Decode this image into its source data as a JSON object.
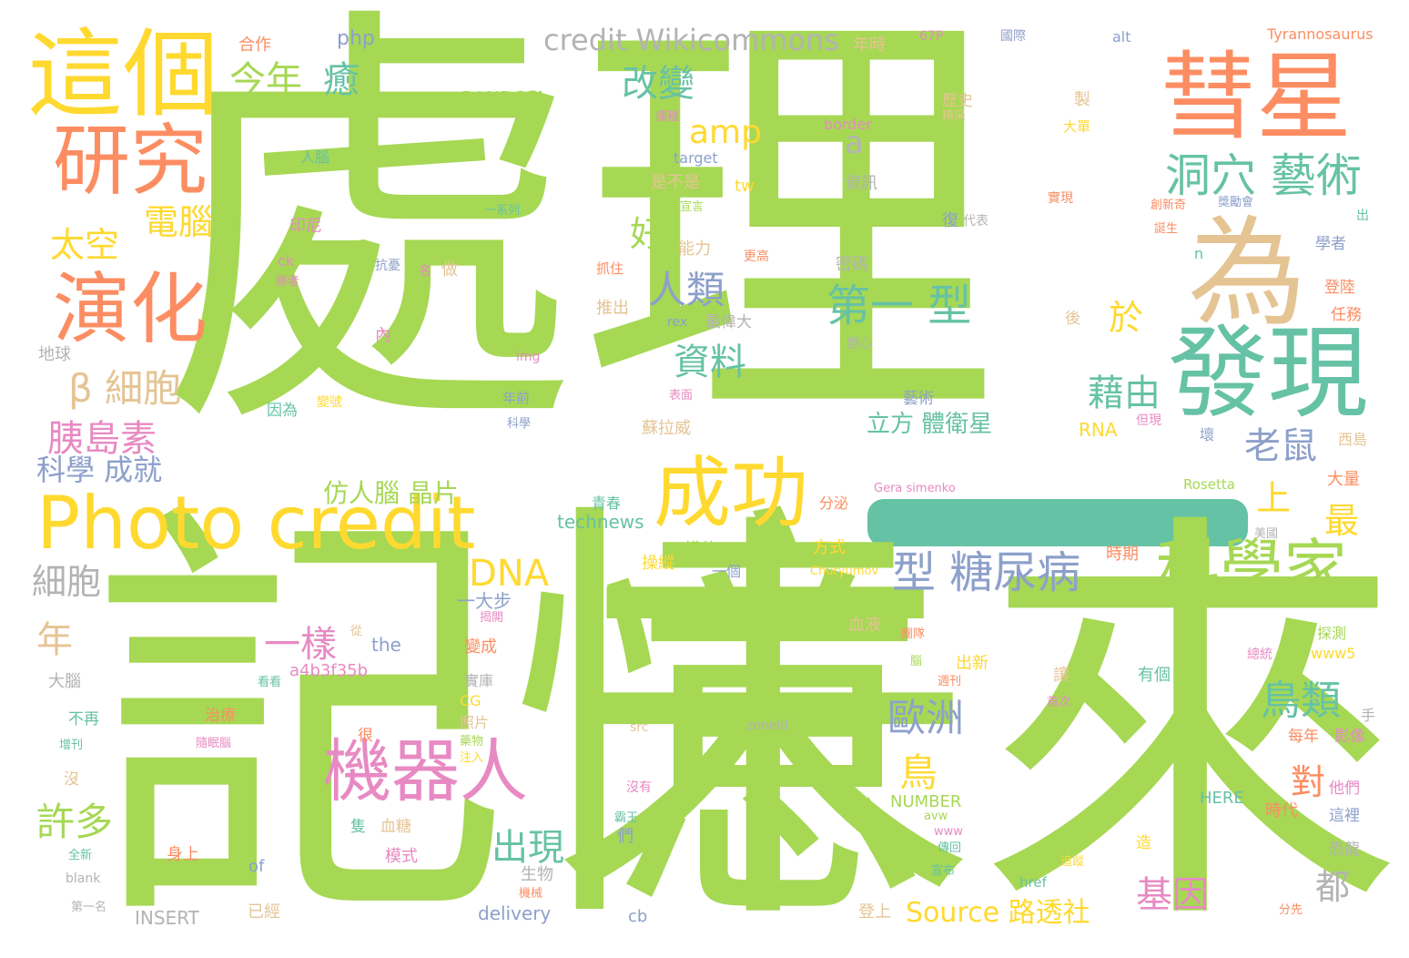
{
  "words": [
    {
      "text": "處理",
      "color": "#a6d854"
    },
    {
      "text": "記憶",
      "color": "#a6d854"
    },
    {
      "text": "未來",
      "color": "#a6d854"
    },
    {
      "text": "這個",
      "color": "#ffd92f"
    },
    {
      "text": "彗星",
      "color": "#fc8d62"
    },
    {
      "text": "研究",
      "color": "#fc8d62"
    },
    {
      "text": "演化",
      "color": "#fc8d62"
    },
    {
      "text": "為",
      "color": "#e5c494"
    },
    {
      "text": "發現",
      "color": "#66c2a5"
    },
    {
      "text": "Photo credit",
      "color": "#ffd92f"
    },
    {
      "text": "成功",
      "color": "#ffd92f"
    },
    {
      "text": "科學家",
      "color": "#a6d854"
    },
    {
      "text": "機器人",
      "color": "#e78ac3"
    },
    {
      "text": "型 糖尿病",
      "color": "#8da0cb"
    },
    {
      "text": "洞穴 藝術",
      "color": "#66c2a5"
    },
    {
      "text": "credit Wikicommons",
      "color": "#b3b3b3"
    },
    {
      "text": "今年",
      "color": "#a6d854"
    },
    {
      "text": "癒",
      "color": "#66c2a5"
    },
    {
      "text": "改變",
      "color": "#66c2a5"
    },
    {
      "text": "amp",
      "color": "#ffd92f"
    },
    {
      "text": "電腦",
      "color": "#ffd92f"
    },
    {
      "text": "太空",
      "color": "#ffd92f"
    },
    {
      "text": "a",
      "color": "#b3b3b3"
    },
    {
      "text": "好",
      "color": "#a6d854"
    },
    {
      "text": "人類",
      "color": "#8da0cb"
    },
    {
      "text": "第一 型",
      "color": "#66c2a5"
    },
    {
      "text": "於",
      "color": "#ffd92f"
    },
    {
      "text": "資料",
      "color": "#66c2a5"
    },
    {
      "text": "β 細胞",
      "color": "#e5c494"
    },
    {
      "text": "藉由",
      "color": "#66c2a5"
    },
    {
      "text": "胰島素",
      "color": "#e78ac3"
    },
    {
      "text": "老鼠",
      "color": "#8da0cb"
    },
    {
      "text": "科學 成就",
      "color": "#8da0cb"
    },
    {
      "text": "上",
      "color": "#ffd92f"
    },
    {
      "text": "最",
      "color": "#ffd92f"
    },
    {
      "text": "仿人腦 晶片",
      "color": "#a6d854"
    },
    {
      "text": "DNA",
      "color": "#ffd92f"
    },
    {
      "text": "細胞",
      "color": "#b3b3b3"
    },
    {
      "text": "年",
      "color": "#e5c494"
    },
    {
      "text": "一樣",
      "color": "#e78ac3"
    },
    {
      "text": "鳥類",
      "color": "#66c2a5"
    },
    {
      "text": "歐洲",
      "color": "#8da0cb"
    },
    {
      "text": "鳥",
      "color": "#ffd92f"
    },
    {
      "text": "對",
      "color": "#fc8d62"
    },
    {
      "text": "許多",
      "color": "#a6d854"
    },
    {
      "text": "出現",
      "color": "#66c2a5"
    },
    {
      "text": "基因",
      "color": "#e78ac3"
    },
    {
      "text": "都",
      "color": "#b3b3b3"
    },
    {
      "text": "Source 路透社",
      "color": "#ffd92f"
    },
    {
      "text": "立方 體衛星",
      "color": "#66c2a5"
    },
    {
      "text": "php",
      "color": "#8da0cb"
    },
    {
      "text": "合作",
      "color": "#fc8d62"
    },
    {
      "text": "年時",
      "color": "#e5c494"
    },
    {
      "text": "67P",
      "color": "#e78ac3"
    },
    {
      "text": "國際",
      "color": "#8da0cb"
    },
    {
      "text": "alt",
      "color": "#8da0cb"
    },
    {
      "text": "Tyrannosaurus",
      "color": "#fc8d62"
    },
    {
      "text": "RANDOM",
      "color": "#a6d854"
    },
    {
      "text": "歷史",
      "color": "#e5c494"
    },
    {
      "text": "精采",
      "color": "#e5c494"
    },
    {
      "text": "製",
      "color": "#e5c494"
    },
    {
      "text": "大單",
      "color": "#ffd92f"
    },
    {
      "text": "border",
      "color": "#e78ac3"
    },
    {
      "text": "播種",
      "color": "#e78ac3"
    },
    {
      "text": "人腦",
      "color": "#66c2a5"
    },
    {
      "text": "target",
      "color": "#8da0cb"
    },
    {
      "text": "是不是",
      "color": "#e5c494"
    },
    {
      "text": "tw",
      "color": "#ffd92f"
    },
    {
      "text": "資訊",
      "color": "#b3b3b3"
    },
    {
      "text": "一系列",
      "color": "#66c2a5"
    },
    {
      "text": "宣言",
      "color": "#a6d854"
    },
    {
      "text": "實現",
      "color": "#fc8d62"
    },
    {
      "text": "創新奇",
      "color": "#fc8d62"
    },
    {
      "text": "獎勵會",
      "color": "#8da0cb"
    },
    {
      "text": "復",
      "color": "#8da0cb"
    },
    {
      "text": "代表",
      "color": "#b3b3b3"
    },
    {
      "text": "印尼",
      "color": "#e78ac3"
    },
    {
      "text": "能力",
      "color": "#e5c494"
    },
    {
      "text": "更高",
      "color": "#fc8d62"
    },
    {
      "text": "密碼",
      "color": "#b3b3b3"
    },
    {
      "text": "誕生",
      "color": "#fc8d62"
    },
    {
      "text": "出",
      "color": "#66c2a5"
    },
    {
      "text": "學者",
      "color": "#8da0cb"
    },
    {
      "text": "n",
      "color": "#66c2a5"
    },
    {
      "text": "ck",
      "color": "#e78ac3"
    },
    {
      "text": "抗憂",
      "color": "#8da0cb"
    },
    {
      "text": "名",
      "color": "#e78ac3"
    },
    {
      "text": "做",
      "color": "#e5c494"
    },
    {
      "text": "抓住",
      "color": "#fc8d62"
    },
    {
      "text": "勝者",
      "color": "#e78ac3"
    },
    {
      "text": "登陸",
      "color": "#fc8d62"
    },
    {
      "text": "推出",
      "color": "#e5c494"
    },
    {
      "text": "rex",
      "color": "#8da0cb"
    },
    {
      "text": "最偉大",
      "color": "#b3b3b3"
    },
    {
      "text": "後",
      "color": "#e5c494"
    },
    {
      "text": "任務",
      "color": "#fc8d62"
    },
    {
      "text": "地球",
      "color": "#b3b3b3"
    },
    {
      "text": "內",
      "color": "#e78ac3"
    },
    {
      "text": "img",
      "color": "#e78ac3"
    },
    {
      "text": "野心",
      "color": "#b3b3b3"
    },
    {
      "text": "藝術",
      "color": "#8da0cb"
    },
    {
      "text": "因為",
      "color": "#66c2a5"
    },
    {
      "text": "年前",
      "color": "#8da0cb"
    },
    {
      "text": "科學",
      "color": "#8da0cb"
    },
    {
      "text": "變號",
      "color": "#ffd92f"
    },
    {
      "text": "表面",
      "color": "#e78ac3"
    },
    {
      "text": "蘇拉威",
      "color": "#e5c494"
    },
    {
      "text": "RNA",
      "color": "#ffd92f"
    },
    {
      "text": "但現",
      "color": "#e78ac3"
    },
    {
      "text": "壞",
      "color": "#8da0cb"
    },
    {
      "text": "西島",
      "color": "#e5c494"
    },
    {
      "text": "Gera simenko",
      "color": "#e78ac3"
    },
    {
      "text": "Rosetta",
      "color": "#a6d854"
    },
    {
      "text": "大量",
      "color": "#fc8d62"
    },
    {
      "text": "technews",
      "color": "#66c2a5"
    },
    {
      "text": "青春",
      "color": "#66c2a5"
    },
    {
      "text": "分泌",
      "color": "#fc8d62"
    },
    {
      "text": "美國",
      "color": "#b3b3b3"
    },
    {
      "text": "模仿",
      "color": "#a6d854"
    },
    {
      "text": "方式",
      "color": "#ffd92f"
    },
    {
      "text": "操縱",
      "color": "#ffd92f"
    },
    {
      "text": "一個",
      "color": "#8da0cb"
    },
    {
      "text": "Churyumov",
      "color": "#ffd92f"
    },
    {
      "text": "時期",
      "color": "#fc8d62"
    },
    {
      "text": "一大步",
      "color": "#8da0cb"
    },
    {
      "text": "揭開",
      "color": "#e78ac3"
    },
    {
      "text": "從",
      "color": "#e5c494"
    },
    {
      "text": "血液",
      "color": "#e5c494"
    },
    {
      "text": "團隊",
      "color": "#fc8d62"
    },
    {
      "text": "探測",
      "color": "#a6d854"
    },
    {
      "text": "the",
      "color": "#8da0cb"
    },
    {
      "text": "a4b3f35b",
      "color": "#e78ac3"
    },
    {
      "text": "變成",
      "color": "#fc8d62"
    },
    {
      "text": "腦",
      "color": "#a6d854"
    },
    {
      "text": "出新",
      "color": "#ffd92f"
    },
    {
      "text": "週刊",
      "color": "#fc8d62"
    },
    {
      "text": "讓",
      "color": "#e5c494"
    },
    {
      "text": "有個",
      "color": "#66c2a5"
    },
    {
      "text": "www5",
      "color": "#ffd92f"
    },
    {
      "text": "總統",
      "color": "#e78ac3"
    },
    {
      "text": "大腦",
      "color": "#b3b3b3"
    },
    {
      "text": "看看",
      "color": "#66c2a5"
    },
    {
      "text": "實庫",
      "color": "#b3b3b3"
    },
    {
      "text": "CG",
      "color": "#ffd92f"
    },
    {
      "text": "照片",
      "color": "#e5c494"
    },
    {
      "text": "首次",
      "color": "#e78ac3"
    },
    {
      "text": "手",
      "color": "#b3b3b3"
    },
    {
      "text": "不再",
      "color": "#66c2a5"
    },
    {
      "text": "治療",
      "color": "#fc8d62"
    },
    {
      "text": "很",
      "color": "#fc8d62"
    },
    {
      "text": "src",
      "color": "#e5c494"
    },
    {
      "text": "zoneid",
      "color": "#b3b3b3"
    },
    {
      "text": "每年",
      "color": "#fc8d62"
    },
    {
      "text": "影像",
      "color": "#e78ac3"
    },
    {
      "text": "增刊",
      "color": "#66c2a5"
    },
    {
      "text": "隨眠腦",
      "color": "#e78ac3"
    },
    {
      "text": "藥物",
      "color": "#a6d854"
    },
    {
      "text": "注入",
      "color": "#ffd92f"
    },
    {
      "text": "沒",
      "color": "#e5c494"
    },
    {
      "text": "沒有",
      "color": "#e78ac3"
    },
    {
      "text": "他們",
      "color": "#e78ac3"
    },
    {
      "text": "NUMBER",
      "color": "#a6d854"
    },
    {
      "text": "HERE",
      "color": "#66c2a5"
    },
    {
      "text": "時代",
      "color": "#fc8d62"
    },
    {
      "text": "這裡",
      "color": "#8da0cb"
    },
    {
      "text": "霸王",
      "color": "#66c2a5"
    },
    {
      "text": "隻",
      "color": "#66c2a5"
    },
    {
      "text": "血糖",
      "color": "#e5c494"
    },
    {
      "text": "avw",
      "color": "#a6d854"
    },
    {
      "text": "www",
      "color": "#e78ac3"
    },
    {
      "text": "們",
      "color": "#8da0cb"
    },
    {
      "text": "恐龍",
      "color": "#b3b3b3"
    },
    {
      "text": "造",
      "color": "#ffd92f"
    },
    {
      "text": "身上",
      "color": "#fc8d62"
    },
    {
      "text": "模式",
      "color": "#e78ac3"
    },
    {
      "text": "傳回",
      "color": "#66c2a5"
    },
    {
      "text": "追蹤",
      "color": "#ffd92f"
    },
    {
      "text": "全新",
      "color": "#66c2a5"
    },
    {
      "text": "of",
      "color": "#8da0cb"
    },
    {
      "text": "生物",
      "color": "#b3b3b3"
    },
    {
      "text": "宣布",
      "color": "#66c2a5"
    },
    {
      "text": "href",
      "color": "#66c2a5"
    },
    {
      "text": "blank",
      "color": "#b3b3b3"
    },
    {
      "text": "機械",
      "color": "#fc8d62"
    },
    {
      "text": "第一名",
      "color": "#b3b3b3"
    },
    {
      "text": "INSERT",
      "color": "#b3b3b3"
    },
    {
      "text": "已經",
      "color": "#e5c494"
    },
    {
      "text": "delivery",
      "color": "#8da0cb"
    },
    {
      "text": "cb",
      "color": "#8da0cb"
    },
    {
      "text": "登上",
      "color": "#e5c494"
    },
    {
      "text": "分先",
      "color": "#fc8d62"
    }
  ]
}
